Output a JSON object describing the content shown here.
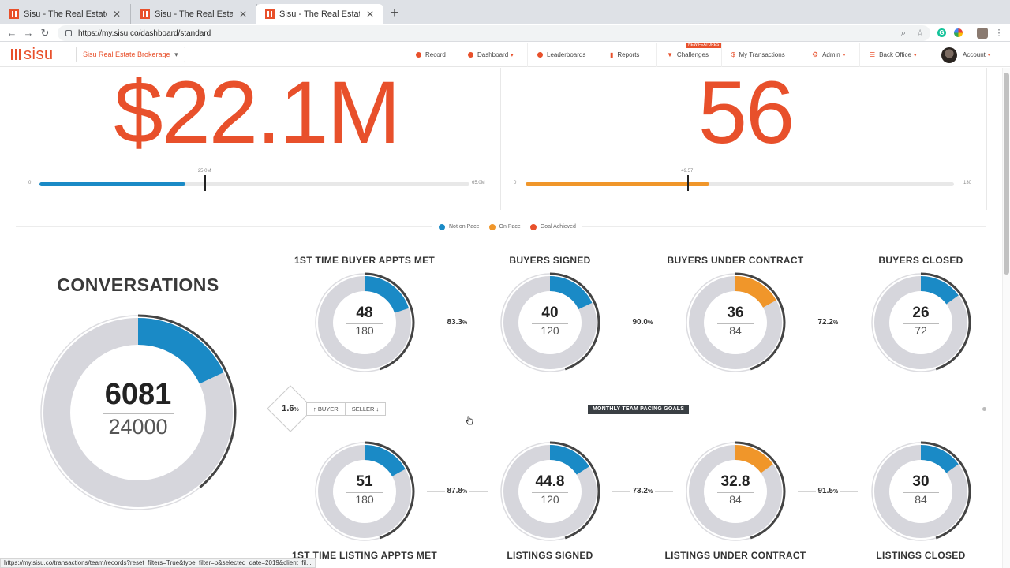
{
  "browser": {
    "tabs": [
      {
        "title": "Sisu - The Real Estate Manage",
        "close": "✕"
      },
      {
        "title": "Sisu - The Real Estate Manage",
        "close": "✕"
      },
      {
        "title": "Sisu - The Real Estate Manage",
        "close": "✕"
      }
    ],
    "new_tab": "+",
    "url": "https://my.sisu.co/dashboard/standard",
    "status_url": "https://my.sisu.co/transactions/team/records?reset_filters=True&type_filter=b&selected_date=2019&client_fil..."
  },
  "app": {
    "logo_text": "sisu",
    "brokerage": "Sisu Real Estate Brokerage",
    "nav": {
      "record": "Record",
      "dashboard": "Dashboard",
      "leaderboards": "Leaderboards",
      "reports": "Reports",
      "challenges": "Challenges",
      "challenges_badge": "NEW FEATURES",
      "transactions": "My Transactions",
      "admin": "Admin",
      "back_office": "Back Office",
      "account": "Account"
    }
  },
  "kpi_volume": {
    "value": "$22.1M",
    "min": "0",
    "marker": "25.0M",
    "max": "65.0M",
    "progress": 0.34,
    "marker_pos": 0.385,
    "color": "#1a8ac6"
  },
  "kpi_units": {
    "value": "56",
    "min": "0",
    "marker": "49.57",
    "max": "130",
    "progress": 0.43,
    "marker_pos": 0.38,
    "color": "#f0962a"
  },
  "legend": {
    "not_on_pace": "Not on Pace",
    "on_pace": "On Pace",
    "goal_achieved": "Goal Achieved",
    "colors": {
      "not_on_pace": "#1a8ac6",
      "on_pace": "#f0962a",
      "goal_achieved": "#e8502b"
    }
  },
  "conversations": {
    "title": "CONVERSATIONS",
    "actual": "6081",
    "goal": "24000",
    "progress": 0.18,
    "outer": 0.39
  },
  "buyer_row": [
    {
      "title": "1ST TIME BUYER APPTS MET",
      "actual": "48",
      "goal": "180",
      "progress": 0.2,
      "outer": 0.45,
      "status": "not_on_pace"
    },
    {
      "title": "BUYERS SIGNED",
      "actual": "40",
      "goal": "120",
      "progress": 0.18,
      "outer": 0.45,
      "status": "not_on_pace"
    },
    {
      "title": "BUYERS UNDER CONTRACT",
      "actual": "36",
      "goal": "84",
      "progress": 0.17,
      "outer": 0.45,
      "status": "on_pace"
    },
    {
      "title": "BUYERS CLOSED",
      "actual": "26",
      "goal": "72",
      "progress": 0.15,
      "outer": 0.45,
      "status": "not_on_pace"
    }
  ],
  "buyer_pcts": [
    {
      "value": "83.3",
      "unit": "%"
    },
    {
      "value": "90.0",
      "unit": "%"
    },
    {
      "value": "72.2",
      "unit": "%"
    }
  ],
  "seller_row": [
    {
      "title": "1ST TIME LISTING APPTS MET",
      "actual": "51",
      "goal": "180",
      "progress": 0.17,
      "outer": 0.45,
      "status": "not_on_pace"
    },
    {
      "title": "LISTINGS SIGNED",
      "actual": "44.8",
      "goal": "120",
      "progress": 0.16,
      "outer": 0.45,
      "status": "not_on_pace"
    },
    {
      "title": "LISTINGS UNDER CONTRACT",
      "actual": "32.8",
      "goal": "84",
      "progress": 0.15,
      "outer": 0.45,
      "status": "on_pace"
    },
    {
      "title": "LISTINGS CLOSED",
      "actual": "30",
      "goal": "84",
      "progress": 0.15,
      "outer": 0.45,
      "status": "not_on_pace"
    }
  ],
  "seller_pcts": [
    {
      "value": "87.8",
      "unit": "%"
    },
    {
      "value": "73.2",
      "unit": "%"
    },
    {
      "value": "91.5",
      "unit": "%"
    }
  ],
  "middle": {
    "conversion": "1.6",
    "conversion_unit": "%",
    "buyer_label": "↑ BUYER",
    "seller_label": "SELLER ↓",
    "pacing_label": "MONTHLY TEAM PACING GOALS"
  }
}
